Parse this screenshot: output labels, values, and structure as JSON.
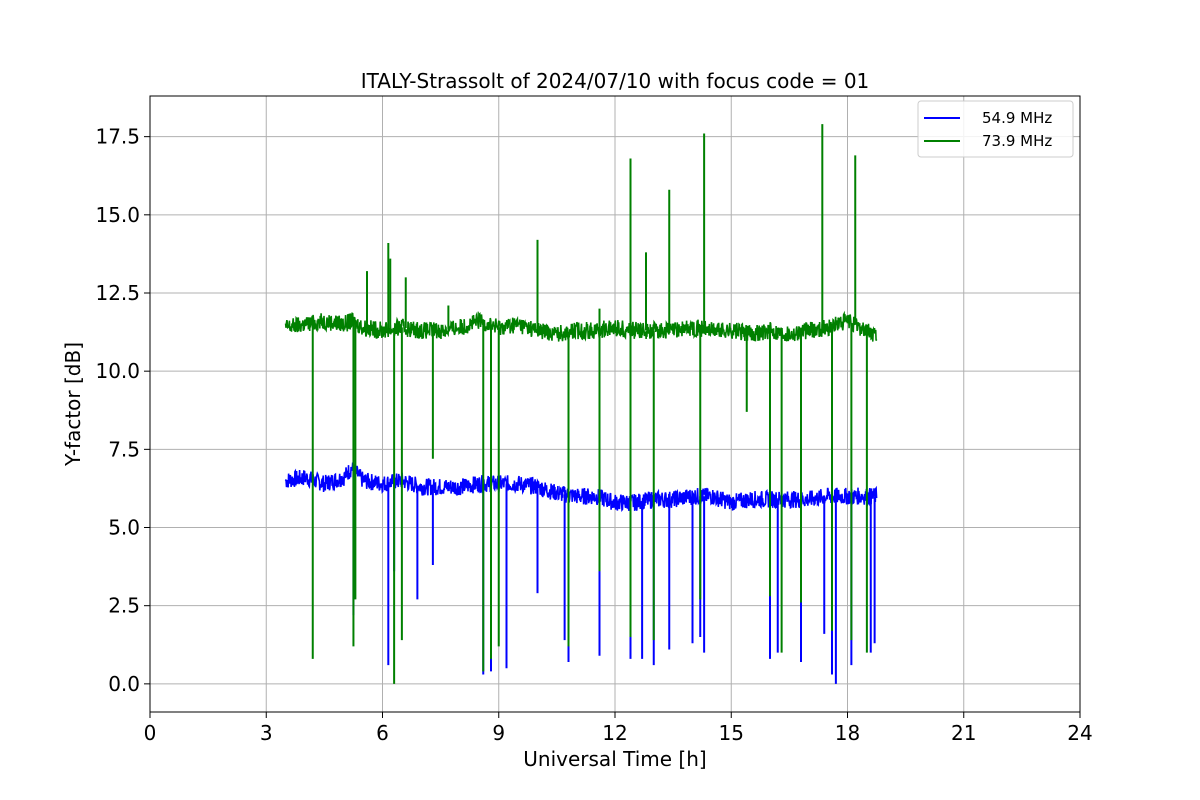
{
  "chart_data": {
    "type": "line",
    "title": "ITALY-Strassolt of 2024/07/10 with focus code = 01",
    "xlabel": "Universal Time [h]",
    "ylabel": "Y-factor [dB]",
    "xlim": [
      0,
      24
    ],
    "ylim": [
      -0.9,
      18.8
    ],
    "xticks": [
      0,
      3,
      6,
      9,
      12,
      15,
      18,
      21,
      24
    ],
    "xtick_labels": [
      "0",
      "3",
      "6",
      "9",
      "12",
      "15",
      "18",
      "21",
      "24"
    ],
    "yticks": [
      0.0,
      2.5,
      5.0,
      7.5,
      10.0,
      12.5,
      15.0,
      17.5
    ],
    "ytick_labels": [
      "0.0",
      "2.5",
      "5.0",
      "7.5",
      "10.0",
      "12.5",
      "15.0",
      "17.5"
    ],
    "grid": true,
    "legend_position": "top-right",
    "series": [
      {
        "name": "54.9 MHz",
        "color": "#0000ff",
        "x": [
          3.5,
          4.0,
          4.5,
          5.0,
          5.2,
          5.5,
          6.0,
          6.5,
          7.0,
          7.5,
          8.0,
          8.5,
          9.0,
          9.5,
          10.0,
          10.5,
          11.0,
          11.5,
          12.0,
          12.5,
          13.0,
          13.5,
          14.0,
          14.5,
          15.0,
          15.5,
          16.0,
          16.5,
          17.0,
          17.5,
          18.0,
          18.5,
          18.75
        ],
        "y": [
          6.5,
          6.6,
          6.4,
          6.6,
          6.9,
          6.5,
          6.4,
          6.5,
          6.3,
          6.3,
          6.3,
          6.4,
          6.4,
          6.4,
          6.3,
          6.1,
          6.0,
          6.0,
          5.8,
          5.8,
          5.9,
          5.9,
          6.0,
          6.0,
          5.8,
          5.9,
          5.9,
          5.9,
          5.9,
          6.0,
          6.0,
          6.0,
          6.0
        ],
        "dips": [
          [
            5.25,
            2.2
          ],
          [
            6.15,
            0.6
          ],
          [
            6.3,
            3.6
          ],
          [
            6.9,
            2.7
          ],
          [
            7.3,
            3.8
          ],
          [
            8.6,
            0.3
          ],
          [
            8.8,
            0.4
          ],
          [
            9.2,
            0.5
          ],
          [
            10.0,
            2.9
          ],
          [
            10.7,
            1.4
          ],
          [
            10.8,
            0.7
          ],
          [
            11.6,
            0.9
          ],
          [
            12.4,
            0.8
          ],
          [
            12.7,
            0.8
          ],
          [
            13.0,
            0.6
          ],
          [
            13.4,
            1.1
          ],
          [
            14.0,
            1.3
          ],
          [
            14.2,
            1.5
          ],
          [
            14.3,
            1.0
          ],
          [
            16.0,
            0.8
          ],
          [
            16.2,
            1.0
          ],
          [
            16.8,
            0.7
          ],
          [
            17.4,
            1.6
          ],
          [
            17.6,
            0.3
          ],
          [
            17.7,
            0.0
          ],
          [
            18.1,
            0.6
          ],
          [
            18.6,
            1.0
          ],
          [
            18.7,
            1.3
          ]
        ]
      },
      {
        "name": "73.9 MHz",
        "color": "#008000",
        "x": [
          3.5,
          4.0,
          4.5,
          5.0,
          5.2,
          5.5,
          6.0,
          6.5,
          7.0,
          7.5,
          8.0,
          8.5,
          9.0,
          9.5,
          10.0,
          10.5,
          11.0,
          11.5,
          12.0,
          12.5,
          13.0,
          13.5,
          14.0,
          14.5,
          15.0,
          15.5,
          16.0,
          16.5,
          17.0,
          17.5,
          18.0,
          18.5,
          18.75
        ],
        "y": [
          11.4,
          11.5,
          11.6,
          11.5,
          11.6,
          11.4,
          11.3,
          11.4,
          11.3,
          11.3,
          11.4,
          11.6,
          11.4,
          11.5,
          11.3,
          11.2,
          11.3,
          11.3,
          11.4,
          11.3,
          11.3,
          11.3,
          11.4,
          11.3,
          11.3,
          11.2,
          11.3,
          11.2,
          11.3,
          11.4,
          11.6,
          11.3,
          11.1
        ],
        "spikes": [
          [
            5.6,
            13.2
          ],
          [
            6.15,
            14.1
          ],
          [
            6.2,
            13.6
          ],
          [
            6.6,
            13.0
          ],
          [
            7.7,
            12.1
          ],
          [
            10.0,
            14.2
          ],
          [
            11.6,
            12.0
          ],
          [
            12.4,
            16.8
          ],
          [
            12.8,
            13.8
          ],
          [
            13.4,
            15.8
          ],
          [
            14.3,
            17.6
          ],
          [
            17.35,
            17.9
          ],
          [
            18.2,
            16.9
          ]
        ],
        "dips": [
          [
            4.2,
            0.8
          ],
          [
            5.25,
            1.2
          ],
          [
            5.3,
            2.7
          ],
          [
            6.3,
            0.0
          ],
          [
            6.5,
            1.4
          ],
          [
            7.3,
            7.2
          ],
          [
            8.6,
            0.4
          ],
          [
            8.8,
            0.8
          ],
          [
            9.0,
            1.2
          ],
          [
            10.8,
            1.2
          ],
          [
            11.6,
            3.6
          ],
          [
            12.4,
            1.5
          ],
          [
            13.0,
            1.4
          ],
          [
            14.2,
            2.7
          ],
          [
            15.4,
            8.7
          ],
          [
            16.0,
            2.8
          ],
          [
            16.3,
            1.0
          ],
          [
            16.8,
            2.6
          ],
          [
            17.6,
            1.7
          ],
          [
            18.1,
            1.4
          ],
          [
            18.5,
            1.0
          ]
        ]
      }
    ]
  }
}
